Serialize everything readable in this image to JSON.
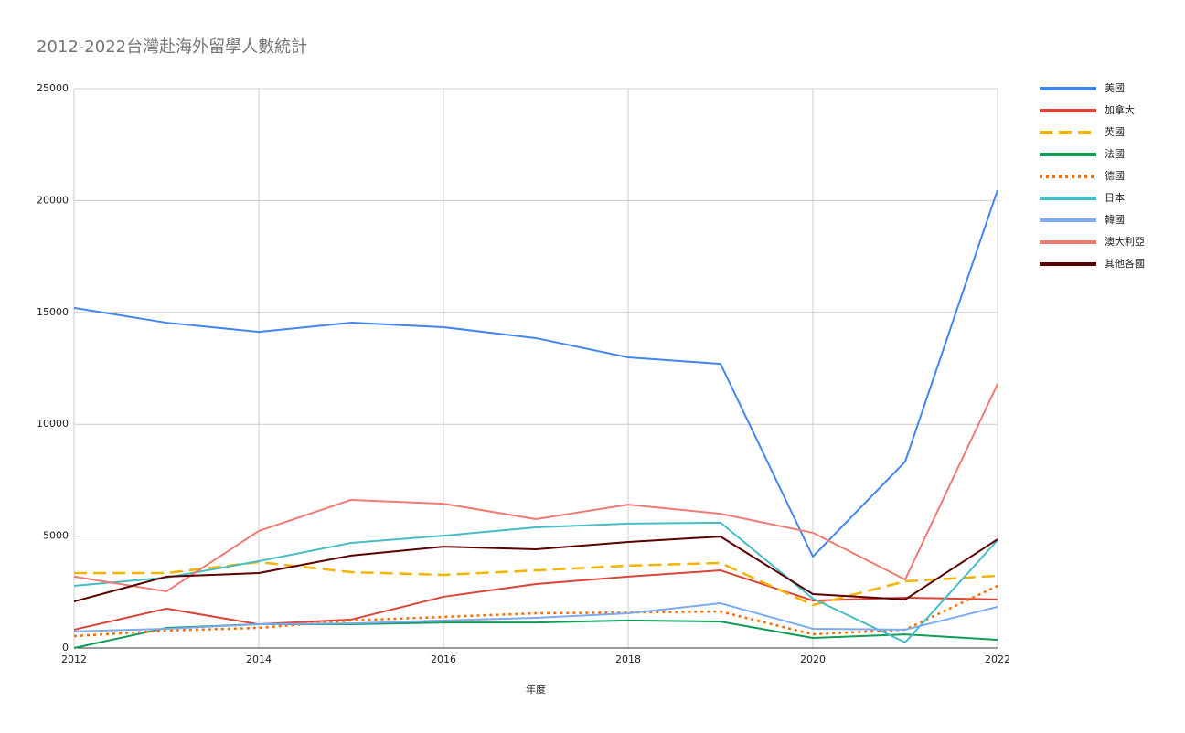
{
  "chart_data": {
    "type": "line",
    "title": "2012-2022台灣赴海外留學人數統計",
    "x_label": "年度",
    "x": [
      2012,
      2013,
      2014,
      2015,
      2016,
      2017,
      2018,
      2019,
      2020,
      2021,
      2022
    ],
    "xlim": [
      2012,
      2022
    ],
    "xticks": [
      2012,
      2014,
      2016,
      2018,
      2020,
      2022
    ],
    "ylim": [
      0,
      25000
    ],
    "yticks": [
      0,
      5000,
      10000,
      15000,
      20000,
      25000
    ],
    "grid": true,
    "legend": "right",
    "series": [
      {
        "name": "美國",
        "color": "#4285f4",
        "line_style": "solid",
        "values": [
          15200,
          14540,
          14130,
          14540,
          14340,
          13850,
          12990,
          12700,
          4085,
          8330,
          20470
        ]
      },
      {
        "name": "加拿大",
        "color": "#db4437",
        "line_style": "solid",
        "values": [
          820,
          1760,
          1060,
          1270,
          2290,
          2860,
          3190,
          3470,
          2120,
          2250,
          2170
        ]
      },
      {
        "name": "英國",
        "color": "#f4b400",
        "line_style": "dashed",
        "values": [
          3350,
          3350,
          3840,
          3390,
          3270,
          3470,
          3680,
          3800,
          1920,
          2980,
          3230
        ]
      },
      {
        "name": "法國",
        "color": "#0f9d58",
        "line_style": "solid",
        "values": [
          0,
          900,
          1060,
          1060,
          1140,
          1140,
          1230,
          1180,
          450,
          610,
          370
        ]
      },
      {
        "name": "德國",
        "color": "#ff6d01",
        "line_style": "dotted",
        "values": [
          530,
          780,
          900,
          1230,
          1390,
          1550,
          1590,
          1630,
          610,
          820,
          2780
        ]
      },
      {
        "name": "日本",
        "color": "#46bdc6",
        "line_style": "solid",
        "values": [
          2780,
          3150,
          3880,
          4700,
          5020,
          5390,
          5560,
          5600,
          2210,
          250,
          4820
        ]
      },
      {
        "name": "韓國",
        "color": "#7baaf7",
        "line_style": "solid",
        "values": [
          740,
          860,
          1060,
          1100,
          1230,
          1350,
          1550,
          2000,
          860,
          820,
          1840
        ]
      },
      {
        "name": "澳大利亞",
        "color": "#f07b72",
        "line_style": "solid",
        "values": [
          3190,
          2530,
          5230,
          6620,
          6450,
          5760,
          6410,
          6000,
          5150,
          3060,
          11800
        ]
      },
      {
        "name": "其他各國",
        "color": "#5b0000",
        "line_style": "solid",
        "values": [
          2080,
          3190,
          3350,
          4130,
          4530,
          4410,
          4740,
          4980,
          2410,
          2170,
          4860
        ]
      }
    ]
  }
}
